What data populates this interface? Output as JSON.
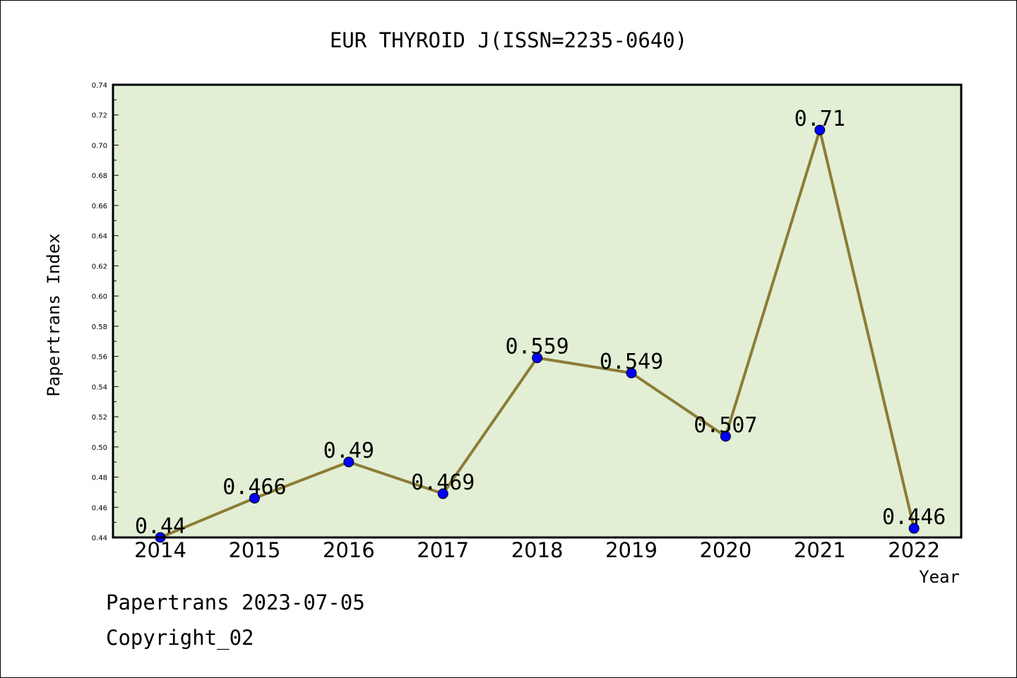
{
  "chart_data": {
    "type": "line",
    "title": "EUR THYROID J(ISSN=2235-0640)",
    "xlabel": "Year",
    "ylabel": "Papertrans Index",
    "x": [
      "2014",
      "2015",
      "2016",
      "2017",
      "2018",
      "2019",
      "2020",
      "2021",
      "2022"
    ],
    "series": [
      {
        "values": [
          0.44,
          0.466,
          0.49,
          0.469,
          0.559,
          0.549,
          0.507,
          0.71,
          0.446
        ],
        "labels": [
          "0.44",
          "0.466",
          "0.49",
          "0.469",
          "0.559",
          "0.549",
          "0.507",
          "0.71",
          "0.446"
        ]
      }
    ],
    "ylim": [
      0.44,
      0.74
    ],
    "yticks": [
      "0.44",
      "0.46",
      "0.48",
      "0.50",
      "0.52",
      "0.54",
      "0.56",
      "0.58",
      "0.60",
      "0.62",
      "0.64",
      "0.66",
      "0.68",
      "0.70",
      "0.72",
      "0.74"
    ],
    "grid": false,
    "legend": "none",
    "colors": {
      "plot_background": "#e2efd5",
      "line": "#8b7d35",
      "marker": "#0000ff",
      "axis": "#000000"
    }
  },
  "footer": {
    "date_line": "Papertrans 2023-07-05",
    "copyright": "Copyright_02"
  }
}
